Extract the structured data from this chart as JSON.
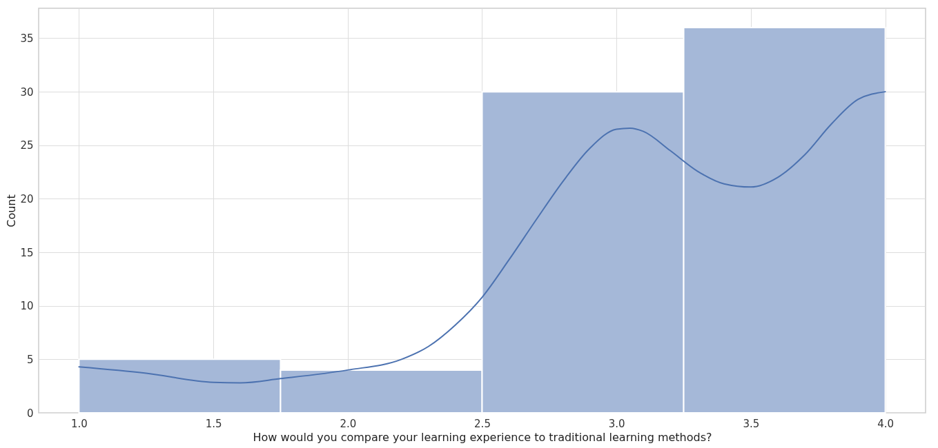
{
  "chart_data": {
    "type": "histogram",
    "xlabel": "How would you compare your learning experience to traditional learning methods?",
    "ylabel": "Count",
    "bins": [
      1.0,
      1.75,
      2.5,
      3.25,
      4.0
    ],
    "series": [
      {
        "color": "#a5b8d8",
        "values": [
          5,
          4,
          30,
          36
        ]
      },
      {
        "type": "line",
        "color": "#4c72b0",
        "x": [
          1.0,
          1.25,
          1.5,
          1.6,
          1.75,
          2.0,
          2.2,
          2.3,
          2.4,
          2.5,
          2.6,
          2.7,
          2.8,
          2.9,
          3.0,
          3.05,
          3.1,
          3.2,
          3.3,
          3.4,
          3.5,
          3.6,
          3.7,
          3.8,
          3.9,
          4.0
        ],
        "values": [
          4.3,
          3.7,
          2.85,
          2.8,
          3.2,
          4.0,
          5.0,
          6.2,
          8.2,
          10.8,
          14.3,
          18.0,
          21.6,
          24.7,
          26.5,
          26.6,
          26.3,
          24.5,
          22.6,
          21.4,
          21.1,
          22.0,
          24.1,
          27.0,
          29.3,
          30.0
        ]
      }
    ],
    "xlim": [
      0.85,
      4.15
    ],
    "xticks": [
      {
        "value": 1,
        "label": "1.0"
      },
      {
        "value": 1.5,
        "label": "1.5"
      },
      {
        "value": 2,
        "label": "2.0"
      },
      {
        "value": 2.5,
        "label": "2.5"
      },
      {
        "value": 3,
        "label": "3.0"
      },
      {
        "value": 3.5,
        "label": "3.5"
      },
      {
        "value": 4,
        "label": "4.0"
      }
    ],
    "ylim": [
      0,
      37.8
    ],
    "yticks": [
      0,
      5,
      10,
      15,
      20,
      25,
      30,
      35
    ],
    "grid": true
  }
}
